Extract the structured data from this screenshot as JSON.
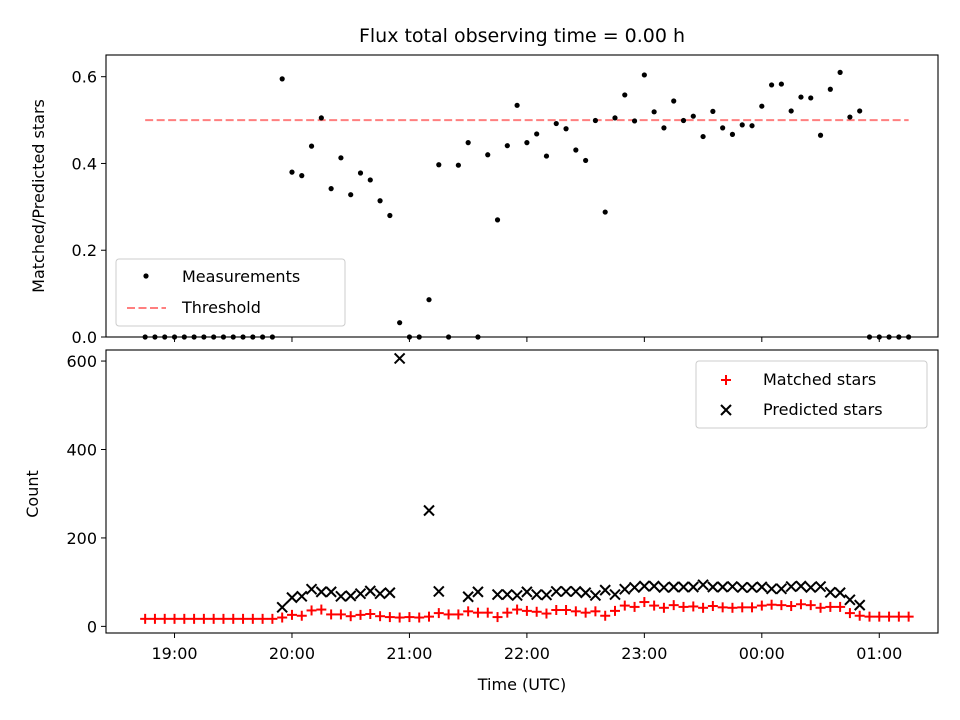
{
  "chart_data": [
    {
      "type": "scatter",
      "title": "Flux total observing time = 0.00 h",
      "ylabel": "Matched/Predicted stars",
      "xlim": [
        "18:25",
        "01:30"
      ],
      "ylim": [
        0,
        0.65
      ],
      "yticks": [
        0.0,
        0.2,
        0.4,
        0.6
      ],
      "ytick_labels": [
        "0.0",
        "0.2",
        "0.4",
        "0.6"
      ],
      "threshold": {
        "y": 0.5,
        "x_start": "18:45",
        "x_end": "01:15",
        "color": "#ff7f7f"
      },
      "series": [
        {
          "name": "Measurements",
          "color": "#000000",
          "points": [
            [
              "18:45",
              0
            ],
            [
              "18:50",
              0
            ],
            [
              "18:55",
              0
            ],
            [
              "19:00",
              0
            ],
            [
              "19:05",
              0
            ],
            [
              "19:10",
              0
            ],
            [
              "19:15",
              0
            ],
            [
              "19:20",
              0
            ],
            [
              "19:25",
              0
            ],
            [
              "19:30",
              0
            ],
            [
              "19:35",
              0
            ],
            [
              "19:40",
              0
            ],
            [
              "19:45",
              0
            ],
            [
              "19:50",
              0
            ],
            [
              "19:55",
              0.595
            ],
            [
              "20:00",
              0.38
            ],
            [
              "20:05",
              0.372
            ],
            [
              "20:10",
              0.44
            ],
            [
              "20:15",
              0.505
            ],
            [
              "20:20",
              0.342
            ],
            [
              "20:25",
              0.413
            ],
            [
              "20:30",
              0.328
            ],
            [
              "20:35",
              0.378
            ],
            [
              "20:40",
              0.362
            ],
            [
              "20:45",
              0.314
            ],
            [
              "20:50",
              0.28
            ],
            [
              "20:55",
              0.033
            ],
            [
              "21:00",
              0
            ],
            [
              "21:05",
              0
            ],
            [
              "21:10",
              0.086
            ],
            [
              "21:15",
              0.397
            ],
            [
              "21:20",
              0
            ],
            [
              "21:25",
              0.396
            ],
            [
              "21:30",
              0.448
            ],
            [
              "21:35",
              0
            ],
            [
              "21:40",
              0.42
            ],
            [
              "21:45",
              0.27
            ],
            [
              "21:50",
              0.441
            ],
            [
              "21:55",
              0.534
            ],
            [
              "22:00",
              0.448
            ],
            [
              "22:05",
              0.468
            ],
            [
              "22:10",
              0.417
            ],
            [
              "22:15",
              0.492
            ],
            [
              "22:20",
              0.48
            ],
            [
              "22:25",
              0.431
            ],
            [
              "22:30",
              0.407
            ],
            [
              "22:35",
              0.499
            ],
            [
              "22:40",
              0.288
            ],
            [
              "22:45",
              0.505
            ],
            [
              "22:50",
              0.558
            ],
            [
              "22:55",
              0.498
            ],
            [
              "23:00",
              0.604
            ],
            [
              "23:05",
              0.519
            ],
            [
              "23:10",
              0.482
            ],
            [
              "23:15",
              0.544
            ],
            [
              "23:20",
              0.499
            ],
            [
              "23:25",
              0.509
            ],
            [
              "23:30",
              0.462
            ],
            [
              "23:35",
              0.52
            ],
            [
              "23:40",
              0.482
            ],
            [
              "23:45",
              0.467
            ],
            [
              "23:50",
              0.489
            ],
            [
              "23:55",
              0.487
            ],
            [
              "00:00",
              0.532
            ],
            [
              "00:05",
              0.581
            ],
            [
              "00:10",
              0.583
            ],
            [
              "00:15",
              0.521
            ],
            [
              "00:20",
              0.553
            ],
            [
              "00:25",
              0.551
            ],
            [
              "00:30",
              0.465
            ],
            [
              "00:35",
              0.571
            ],
            [
              "00:40",
              0.61
            ],
            [
              "00:45",
              0.507
            ],
            [
              "00:50",
              0.521
            ],
            [
              "00:55",
              0
            ],
            [
              "01:00",
              0
            ],
            [
              "01:05",
              0
            ],
            [
              "01:10",
              0
            ],
            [
              "01:15",
              0
            ]
          ]
        }
      ],
      "legend": {
        "position": "lower-left",
        "entries": [
          "Measurements",
          "Threshold"
        ]
      }
    },
    {
      "type": "scatter",
      "xlabel": "Time (UTC)",
      "ylabel": "Count",
      "xlim": [
        "18:25",
        "01:30"
      ],
      "ylim": [
        -15,
        625
      ],
      "yticks": [
        0,
        200,
        400,
        600
      ],
      "ytick_labels": [
        "0",
        "200",
        "400",
        "600"
      ],
      "xticks": [
        "19:00",
        "20:00",
        "21:00",
        "22:00",
        "23:00",
        "00:00",
        "01:00"
      ],
      "xtick_labels": [
        "19:00",
        "20:00",
        "21:00",
        "22:00",
        "23:00",
        "00:00",
        "01:00"
      ],
      "series": [
        {
          "name": "Matched stars",
          "marker": "+",
          "color": "#ff0000",
          "points": [
            [
              "18:45",
              17
            ],
            [
              "18:50",
              17
            ],
            [
              "18:55",
              17
            ],
            [
              "19:00",
              17
            ],
            [
              "19:05",
              17
            ],
            [
              "19:10",
              17
            ],
            [
              "19:15",
              17
            ],
            [
              "19:20",
              17
            ],
            [
              "19:25",
              17
            ],
            [
              "19:30",
              17
            ],
            [
              "19:35",
              17
            ],
            [
              "19:40",
              17
            ],
            [
              "19:45",
              17
            ],
            [
              "19:50",
              17
            ],
            [
              "19:55",
              20
            ],
            [
              "20:00",
              26
            ],
            [
              "20:05",
              24
            ],
            [
              "20:10",
              36
            ],
            [
              "20:15",
              38
            ],
            [
              "20:20",
              27
            ],
            [
              "20:25",
              27
            ],
            [
              "20:30",
              23
            ],
            [
              "20:35",
              26
            ],
            [
              "20:40",
              28
            ],
            [
              "20:45",
              23
            ],
            [
              "20:50",
              21
            ],
            [
              "20:55",
              20
            ],
            [
              "21:00",
              21
            ],
            [
              "21:05",
              20
            ],
            [
              "21:10",
              22
            ],
            [
              "21:15",
              30
            ],
            [
              "21:20",
              27
            ],
            [
              "21:25",
              27
            ],
            [
              "21:30",
              34
            ],
            [
              "21:35",
              31
            ],
            [
              "21:40",
              31
            ],
            [
              "21:45",
              21
            ],
            [
              "21:50",
              31
            ],
            [
              "21:55",
              38
            ],
            [
              "22:00",
              35
            ],
            [
              "22:05",
              33
            ],
            [
              "22:10",
              29
            ],
            [
              "22:15",
              37
            ],
            [
              "22:20",
              37
            ],
            [
              "22:25",
              34
            ],
            [
              "22:30",
              31
            ],
            [
              "22:35",
              34
            ],
            [
              "22:40",
              24
            ],
            [
              "22:45",
              35
            ],
            [
              "22:50",
              47
            ],
            [
              "22:55",
              44
            ],
            [
              "23:00",
              55
            ],
            [
              "23:05",
              47
            ],
            [
              "23:10",
              42
            ],
            [
              "23:15",
              48
            ],
            [
              "23:20",
              44
            ],
            [
              "23:25",
              45
            ],
            [
              "23:30",
              42
            ],
            [
              "23:35",
              46
            ],
            [
              "23:40",
              43
            ],
            [
              "23:45",
              42
            ],
            [
              "23:50",
              43
            ],
            [
              "23:55",
              43
            ],
            [
              "00:00",
              47
            ],
            [
              "00:05",
              49
            ],
            [
              "00:10",
              48
            ],
            [
              "00:15",
              46
            ],
            [
              "00:20",
              50
            ],
            [
              "00:25",
              48
            ],
            [
              "00:30",
              42
            ],
            [
              "00:35",
              44
            ],
            [
              "00:40",
              44
            ],
            [
              "00:45",
              30
            ],
            [
              "00:50",
              24
            ],
            [
              "00:55",
              22
            ],
            [
              "01:00",
              22
            ],
            [
              "01:05",
              22
            ],
            [
              "01:10",
              22
            ],
            [
              "01:15",
              22
            ]
          ]
        },
        {
          "name": "Predicted stars",
          "marker": "x",
          "color": "#000000",
          "points": [
            [
              "19:55",
              43
            ],
            [
              "20:00",
              65
            ],
            [
              "20:05",
              68
            ],
            [
              "20:10",
              84
            ],
            [
              "20:15",
              78
            ],
            [
              "20:20",
              78
            ],
            [
              "20:25",
              68
            ],
            [
              "20:30",
              69
            ],
            [
              "20:35",
              74
            ],
            [
              "20:40",
              80
            ],
            [
              "20:45",
              74
            ],
            [
              "20:50",
              76
            ],
            [
              "20:55",
              606
            ],
            [
              "21:10",
              262
            ],
            [
              "21:15",
              79
            ],
            [
              "21:30",
              67
            ],
            [
              "21:35",
              78
            ],
            [
              "21:45",
              72
            ],
            [
              "21:50",
              72
            ],
            [
              "21:55",
              70
            ],
            [
              "22:00",
              78
            ],
            [
              "22:05",
              72
            ],
            [
              "22:10",
              71
            ],
            [
              "22:15",
              79
            ],
            [
              "22:20",
              79
            ],
            [
              "22:25",
              79
            ],
            [
              "22:30",
              76
            ],
            [
              "22:35",
              70
            ],
            [
              "22:40",
              82
            ],
            [
              "22:45",
              72
            ],
            [
              "22:50",
              84
            ],
            [
              "22:55",
              88
            ],
            [
              "23:00",
              91
            ],
            [
              "23:05",
              91
            ],
            [
              "23:10",
              88
            ],
            [
              "23:15",
              89
            ],
            [
              "23:20",
              89
            ],
            [
              "23:25",
              89
            ],
            [
              "23:30",
              94
            ],
            [
              "23:35",
              89
            ],
            [
              "23:40",
              89
            ],
            [
              "23:45",
              90
            ],
            [
              "23:50",
              88
            ],
            [
              "23:55",
              88
            ],
            [
              "00:00",
              89
            ],
            [
              "00:05",
              85
            ],
            [
              "00:10",
              85
            ],
            [
              "00:15",
              90
            ],
            [
              "00:20",
              91
            ],
            [
              "00:25",
              88
            ],
            [
              "00:30",
              90
            ],
            [
              "00:35",
              77
            ],
            [
              "00:40",
              76
            ],
            [
              "00:45",
              60
            ],
            [
              "00:50",
              48
            ]
          ]
        }
      ],
      "legend": {
        "position": "upper-right",
        "entries": [
          "Matched stars",
          "Predicted stars"
        ]
      }
    }
  ]
}
